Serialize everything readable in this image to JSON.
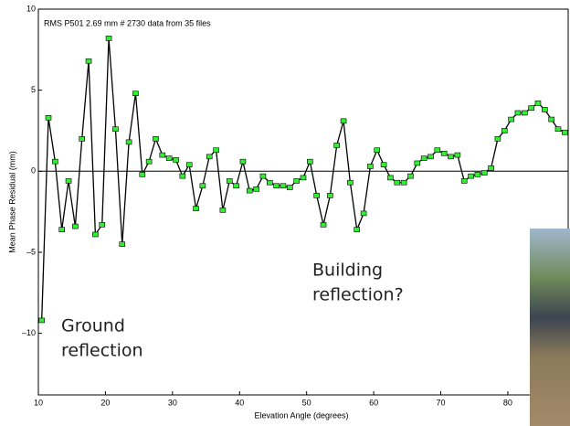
{
  "chart_data": {
    "type": "line",
    "title": "RMS P501 2.69 mm # 2730 data from 35 files",
    "x_label": "Elevation Angle (degrees)",
    "y_label": "Mean Phase Residual (mm)",
    "annotations": [
      [
        "Ground",
        "reflection"
      ],
      [
        "Building",
        "reflection?"
      ]
    ],
    "x": [
      10.5,
      11.5,
      12.5,
      13.5,
      14.5,
      15.5,
      16.5,
      17.5,
      18.5,
      19.5,
      20.5,
      21.5,
      22.5,
      23.5,
      24.5,
      25.5,
      26.5,
      27.5,
      28.5,
      29.5,
      30.5,
      31.5,
      32.5,
      33.5,
      34.5,
      35.5,
      36.5,
      37.5,
      38.5,
      39.5,
      40.5,
      41.5,
      42.5,
      43.5,
      44.5,
      45.5,
      46.5,
      47.5,
      48.5,
      49.5,
      50.5,
      51.5,
      52.5,
      53.5,
      54.5,
      55.5,
      56.5,
      57.5,
      58.5,
      59.5,
      60.5,
      61.5,
      62.5,
      63.5,
      64.5,
      65.5,
      66.5,
      67.5,
      68.5,
      69.5,
      70.5,
      71.5,
      72.5,
      73.5,
      74.5,
      75.5,
      76.5,
      77.5,
      78.5,
      79.5,
      80.5,
      81.5,
      82.5,
      83.5,
      84.5,
      85.5,
      86.5,
      87.5,
      88.5
    ],
    "series": [
      {
        "color": "#000000",
        "marker_color": "#33ee33",
        "values": [
          -9.2,
          3.3,
          0.6,
          -3.6,
          -0.6,
          -3.4,
          2,
          6.8,
          -3.9,
          -3.3,
          8.2,
          2.6,
          -4.5,
          1.8,
          4.8,
          -0.2,
          0.6,
          2,
          1,
          0.8,
          0.7,
          -0.3,
          0.4,
          -2.3,
          -0.9,
          0.9,
          1.3,
          -2.4,
          -0.6,
          -0.9,
          0.6,
          -1.2,
          -1.1,
          -0.3,
          -0.7,
          -0.9,
          -0.9,
          -1,
          -0.6,
          -0.4,
          0.6,
          -1.5,
          -3.3,
          -1.5,
          1.6,
          3.1,
          -0.7,
          -3.6,
          -2.6,
          0.3,
          1.3,
          0.4,
          -0.4,
          -0.7,
          -0.7,
          -0.3,
          0.5,
          0.8,
          0.9,
          1.3,
          1.1,
          0.9,
          1,
          -0.6,
          -0.3,
          -0.2,
          -0.1,
          0.2,
          2,
          2.5,
          3.2,
          3.6,
          3.6,
          3.9,
          4.2,
          3.8,
          3.2,
          2.6,
          2.4
        ]
      }
    ],
    "xlim": [
      10,
      89
    ],
    "ylim": [
      -13.8,
      10
    ],
    "xticks": [
      10,
      20,
      30,
      40,
      50,
      60,
      70,
      80
    ],
    "yticks": [
      {
        "value": -10,
        "label": "–10"
      },
      {
        "value": -5,
        "label": "–5"
      },
      0,
      5,
      10
    ],
    "hline": 0
  }
}
